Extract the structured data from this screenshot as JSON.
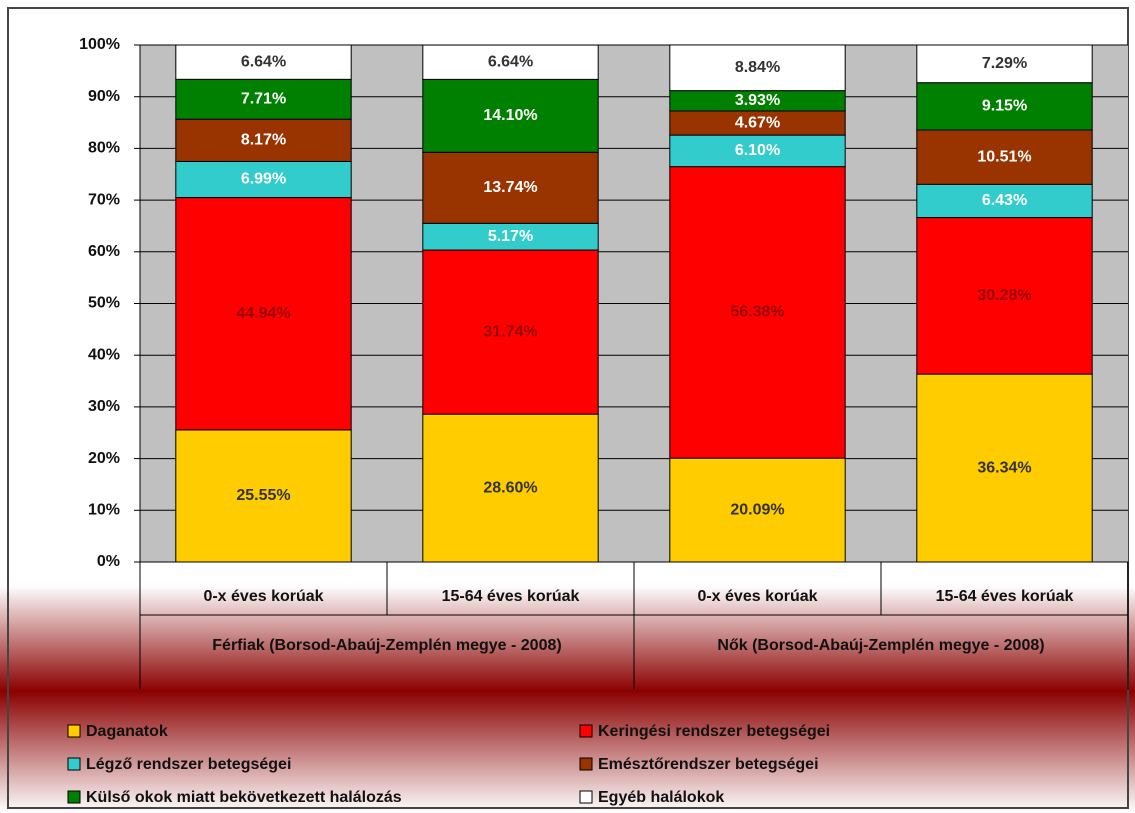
{
  "chart_data": {
    "type": "stacked_bar",
    "categories": [
      "0-x éves korúak",
      "15-64 éves korúak",
      "0-x éves korúak",
      "15-64 éves korúak"
    ],
    "groups": [
      "Férfiak (Borsod-Abaúj-Zemplén megye - 2008)",
      "Nők (Borsod-Abaúj-Zemplén megye - 2008)"
    ],
    "series": [
      {
        "name": "Daganatok",
        "color": "#ffcc00",
        "label_color": "#333333",
        "values": [
          25.55,
          28.6,
          20.09,
          36.34
        ],
        "value_labels": [
          "25.55%",
          "28.60%",
          "20.09%",
          "36.34%"
        ]
      },
      {
        "name": "Keringési rendszer betegségei",
        "color": "#ff0000",
        "label_color": "#990000",
        "values": [
          44.94,
          31.74,
          56.38,
          30.28
        ],
        "value_labels": [
          "44.94%",
          "31.74%",
          "56.38%",
          "30.28%"
        ]
      },
      {
        "name": "Légző rendszer betegségei",
        "color": "#33cccc",
        "label_color": "#ffffff",
        "values": [
          6.99,
          5.17,
          6.1,
          6.43
        ],
        "value_labels": [
          "6.99%",
          "5.17%",
          "6.10%",
          "6.43%"
        ]
      },
      {
        "name": "Emésztőrendszer betegségei",
        "color": "#993300",
        "label_color": "#ffffff",
        "values": [
          8.17,
          13.74,
          4.67,
          10.51
        ],
        "value_labels": [
          "8.17%",
          "13.74%",
          "4.67%",
          "10.51%"
        ]
      },
      {
        "name": "Külső okok miatt bekövetkezett halálozás",
        "color": "#008000",
        "label_color": "#ffffff",
        "values": [
          7.71,
          14.1,
          3.93,
          9.15
        ],
        "value_labels": [
          "7.71%",
          "14.10%",
          "3.93%",
          "9.15%"
        ]
      },
      {
        "name": "Egyéb halálokok",
        "color": "#ffffff",
        "label_color": "#333333",
        "values": [
          6.64,
          6.64,
          8.84,
          7.29
        ],
        "value_labels": [
          "6.64%",
          "6.64%",
          "8.84%",
          "7.29%"
        ]
      }
    ],
    "ylim": [
      0,
      100
    ],
    "yticks": [
      {
        "value": 0,
        "label": "0%"
      },
      {
        "value": 10,
        "label": "10%"
      },
      {
        "value": 20,
        "label": "20%"
      },
      {
        "value": 30,
        "label": "30%"
      },
      {
        "value": 40,
        "label": "40%"
      },
      {
        "value": 50,
        "label": "50%"
      },
      {
        "value": 60,
        "label": "60%"
      },
      {
        "value": 70,
        "label": "70%"
      },
      {
        "value": 80,
        "label": "80%"
      },
      {
        "value": 90,
        "label": "90%"
      },
      {
        "value": 100,
        "label": "100%"
      }
    ],
    "grid": true,
    "legend": "bottom"
  }
}
